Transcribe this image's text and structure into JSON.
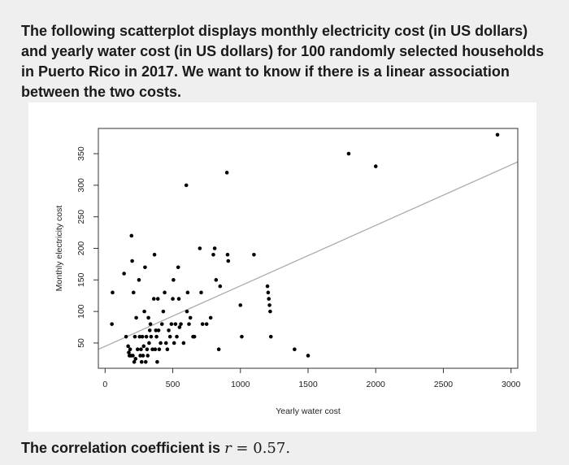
{
  "intro_text": "The following scatterplot displays monthly electricity cost (in US dollars) and yearly water cost (in US dollars) for 100 randomly selected households in Puerto Rico in 2017. We want to know if there is a linear association between the two costs.",
  "correlation": {
    "prefix": "The correlation coefficient is",
    "symbol": "r",
    "equals": "=",
    "value": "0.57."
  },
  "colors": {
    "points": "#000000",
    "fit_line": "#aaaaaa",
    "axis": "#333333",
    "background": "#efefef",
    "plot_bg": "#ffffff"
  },
  "chart_data": {
    "type": "scatter",
    "title": "",
    "xlabel": "Yearly water cost",
    "ylabel": "Monthly electricity cost",
    "xlim": [
      -50,
      3050
    ],
    "ylim": [
      10,
      390
    ],
    "x_ticks": [
      0,
      500,
      1000,
      1500,
      2000,
      2500,
      3000
    ],
    "y_ticks": [
      50,
      100,
      150,
      200,
      250,
      300,
      350
    ],
    "grid": false,
    "fit_line": {
      "x": [
        -50,
        3050
      ],
      "y": [
        40,
        337
      ]
    },
    "points": [
      [
        55,
        130
      ],
      [
        50,
        80
      ],
      [
        140,
        160
      ],
      [
        155,
        60
      ],
      [
        170,
        45
      ],
      [
        175,
        35
      ],
      [
        180,
        30
      ],
      [
        185,
        40
      ],
      [
        190,
        30
      ],
      [
        195,
        220
      ],
      [
        200,
        180
      ],
      [
        205,
        30
      ],
      [
        210,
        130
      ],
      [
        215,
        20
      ],
      [
        220,
        60
      ],
      [
        225,
        25
      ],
      [
        230,
        90
      ],
      [
        240,
        40
      ],
      [
        250,
        150
      ],
      [
        255,
        60
      ],
      [
        260,
        30
      ],
      [
        265,
        40
      ],
      [
        270,
        20
      ],
      [
        275,
        60
      ],
      [
        280,
        30
      ],
      [
        285,
        45
      ],
      [
        290,
        100
      ],
      [
        295,
        170
      ],
      [
        300,
        20
      ],
      [
        305,
        60
      ],
      [
        310,
        40
      ],
      [
        315,
        30
      ],
      [
        320,
        90
      ],
      [
        325,
        50
      ],
      [
        330,
        70
      ],
      [
        335,
        80
      ],
      [
        340,
        60
      ],
      [
        350,
        40
      ],
      [
        360,
        120
      ],
      [
        365,
        190
      ],
      [
        370,
        40
      ],
      [
        375,
        70
      ],
      [
        380,
        60
      ],
      [
        385,
        20
      ],
      [
        390,
        120
      ],
      [
        395,
        70
      ],
      [
        400,
        40
      ],
      [
        410,
        50
      ],
      [
        420,
        80
      ],
      [
        430,
        100
      ],
      [
        440,
        130
      ],
      [
        450,
        50
      ],
      [
        460,
        40
      ],
      [
        470,
        70
      ],
      [
        480,
        60
      ],
      [
        490,
        80
      ],
      [
        500,
        120
      ],
      [
        505,
        150
      ],
      [
        510,
        50
      ],
      [
        520,
        80
      ],
      [
        530,
        60
      ],
      [
        540,
        170
      ],
      [
        545,
        120
      ],
      [
        550,
        75
      ],
      [
        560,
        80
      ],
      [
        580,
        50
      ],
      [
        600,
        300
      ],
      [
        605,
        100
      ],
      [
        610,
        130
      ],
      [
        620,
        80
      ],
      [
        630,
        90
      ],
      [
        650,
        60
      ],
      [
        660,
        60
      ],
      [
        700,
        200
      ],
      [
        710,
        130
      ],
      [
        720,
        80
      ],
      [
        750,
        80
      ],
      [
        780,
        90
      ],
      [
        800,
        190
      ],
      [
        810,
        200
      ],
      [
        820,
        150
      ],
      [
        840,
        40
      ],
      [
        850,
        140
      ],
      [
        900,
        320
      ],
      [
        905,
        190
      ],
      [
        910,
        180
      ],
      [
        1000,
        110
      ],
      [
        1010,
        60
      ],
      [
        1100,
        190
      ],
      [
        1200,
        140
      ],
      [
        1205,
        130
      ],
      [
        1210,
        120
      ],
      [
        1215,
        110
      ],
      [
        1220,
        100
      ],
      [
        1225,
        60
      ],
      [
        1400,
        40
      ],
      [
        1500,
        30
      ],
      [
        1800,
        350
      ],
      [
        2000,
        330
      ],
      [
        2900,
        380
      ]
    ]
  }
}
